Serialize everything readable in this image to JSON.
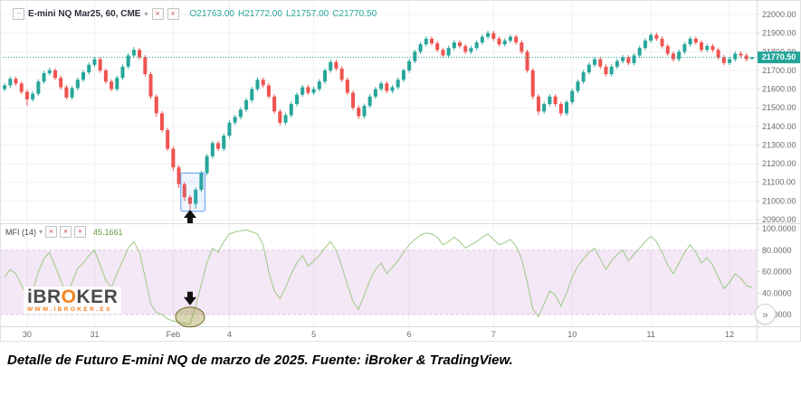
{
  "header": {
    "symbol": "E-mini NQ Mar25, 60, CME",
    "open_label": "O21763.00",
    "high_label": "H21772.00",
    "low_label": "L21757.00",
    "close_label": "C21770.50"
  },
  "indicator": {
    "name": "MFI (14)",
    "value": "45.1661"
  },
  "price_line": {
    "value": 21770.5,
    "label": "21770.50"
  },
  "icons": {
    "collapse": "−",
    "dropdown": "▾",
    "broken_x": "✕",
    "chevron_double_right": "»"
  },
  "watermark": {
    "brand_prefix": "iBR",
    "brand_o": "O",
    "brand_suffix": "KER",
    "subtitle": "WWW.IBROKER.ES"
  },
  "caption": "Detalle de Futuro E-mini NQ de marzo de 2025. Fuente: iBroker & TradingView.",
  "colors": {
    "up": "#26a69a",
    "down": "#ef5350",
    "mfi_line": "#9bcb84",
    "mfi_value": "#5a9e3e",
    "band_fill": "rgba(206,147,216,0.22)",
    "band_line": "#cfa6d6",
    "grid": "#f0f0f0",
    "separator": "#d8dbe3",
    "axis_text": "#6a6a6a",
    "selection": "#5b9cf6",
    "selection_fill": "rgba(91,156,246,0.10)",
    "annotation": "#111111",
    "circle_fill": "rgba(158,147,50,0.38)",
    "circle_stroke": "#6f6824",
    "logo_text": "#4a4a4c",
    "logo_accent": "#f58220",
    "border": "#e2e2e2"
  },
  "axis": {
    "price_ticks": [
      {
        "label": "22000.00",
        "value": 22000
      },
      {
        "label": "21900.00",
        "value": 21900
      },
      {
        "label": "21800.00",
        "value": 21800
      },
      {
        "label": "21700.00",
        "value": 21700
      },
      {
        "label": "21600.00",
        "value": 21600
      },
      {
        "label": "21500.00",
        "value": 21500
      },
      {
        "label": "21400.00",
        "value": 21400
      },
      {
        "label": "21300.00",
        "value": 21300
      },
      {
        "label": "21200.00",
        "value": 21200
      },
      {
        "label": "21100.00",
        "value": 21100
      },
      {
        "label": "21000.00",
        "value": 21000
      },
      {
        "label": "20900.00",
        "value": 20900
      }
    ],
    "mfi_ticks": [
      {
        "label": "100.0000",
        "value": 100
      },
      {
        "label": "80.0000",
        "value": 80
      },
      {
        "label": "60.0000",
        "value": 60
      },
      {
        "label": "40.0000",
        "value": 40
      },
      {
        "label": "20.0000",
        "value": 20
      }
    ],
    "time_ticks": [
      {
        "label": "30",
        "index": 4
      },
      {
        "label": "31",
        "index": 16
      },
      {
        "label": "Feb",
        "index": 30
      },
      {
        "label": "4",
        "index": 40
      },
      {
        "label": "5",
        "index": 55
      },
      {
        "label": "6",
        "index": 72
      },
      {
        "label": "7",
        "index": 87
      },
      {
        "label": "10",
        "index": 101
      },
      {
        "label": "11",
        "index": 115
      },
      {
        "label": "12",
        "index": 129
      }
    ]
  },
  "chart_data": [
    {
      "type": "candlestick",
      "title": "E-mini NQ Mar25, 60, CME",
      "interval_minutes": 60,
      "ylim": [
        20900,
        22000
      ],
      "last_price": 21770.5,
      "ohlc": [
        [
          21600,
          21632,
          21588,
          21620
        ],
        [
          21620,
          21667,
          21608,
          21655
        ],
        [
          21655,
          21667,
          21618,
          21630
        ],
        [
          21630,
          21642,
          21573,
          21585
        ],
        [
          21585,
          21597,
          21510,
          21545
        ],
        [
          21545,
          21587,
          21533,
          21575
        ],
        [
          21575,
          21652,
          21563,
          21640
        ],
        [
          21640,
          21697,
          21628,
          21685
        ],
        [
          21685,
          21715,
          21673,
          21700
        ],
        [
          21700,
          21712,
          21648,
          21660
        ],
        [
          21660,
          21672,
          21598,
          21610
        ],
        [
          21610,
          21622,
          21543,
          21555
        ],
        [
          21555,
          21617,
          21543,
          21605
        ],
        [
          21605,
          21662,
          21593,
          21650
        ],
        [
          21650,
          21702,
          21638,
          21690
        ],
        [
          21690,
          21742,
          21678,
          21730
        ],
        [
          21730,
          21772,
          21718,
          21760
        ],
        [
          21760,
          21772,
          21688,
          21700
        ],
        [
          21700,
          21712,
          21628,
          21640
        ],
        [
          21640,
          21652,
          21588,
          21600
        ],
        [
          21600,
          21672,
          21588,
          21660
        ],
        [
          21660,
          21732,
          21648,
          21720
        ],
        [
          21720,
          21792,
          21708,
          21780
        ],
        [
          21780,
          21825,
          21768,
          21810
        ],
        [
          21810,
          21822,
          21758,
          21770
        ],
        [
          21770,
          21782,
          21668,
          21680
        ],
        [
          21680,
          21692,
          21548,
          21560
        ],
        [
          21560,
          21572,
          21450,
          21470
        ],
        [
          21470,
          21482,
          21368,
          21380
        ],
        [
          21380,
          21392,
          21268,
          21280
        ],
        [
          21280,
          21292,
          21160,
          21180
        ],
        [
          21180,
          21192,
          21070,
          21090
        ],
        [
          21090,
          21102,
          21000,
          21020
        ],
        [
          21020,
          21032,
          20955,
          20985
        ],
        [
          20985,
          21072,
          20960,
          21060
        ],
        [
          21060,
          21162,
          21048,
          21150
        ],
        [
          21150,
          21252,
          21138,
          21240
        ],
        [
          21240,
          21322,
          21228,
          21310
        ],
        [
          21310,
          21322,
          21268,
          21280
        ],
        [
          21280,
          21362,
          21268,
          21350
        ],
        [
          21350,
          21432,
          21338,
          21420
        ],
        [
          21420,
          21462,
          21408,
          21450
        ],
        [
          21450,
          21502,
          21438,
          21490
        ],
        [
          21490,
          21552,
          21478,
          21540
        ],
        [
          21540,
          21612,
          21528,
          21600
        ],
        [
          21600,
          21662,
          21588,
          21650
        ],
        [
          21650,
          21662,
          21608,
          21620
        ],
        [
          21620,
          21632,
          21548,
          21560
        ],
        [
          21560,
          21572,
          21468,
          21480
        ],
        [
          21480,
          21492,
          21405,
          21420
        ],
        [
          21420,
          21472,
          21408,
          21460
        ],
        [
          21460,
          21532,
          21448,
          21520
        ],
        [
          21520,
          21582,
          21508,
          21570
        ],
        [
          21570,
          21622,
          21558,
          21610
        ],
        [
          21610,
          21622,
          21568,
          21580
        ],
        [
          21580,
          21612,
          21568,
          21600
        ],
        [
          21600,
          21652,
          21588,
          21640
        ],
        [
          21640,
          21712,
          21628,
          21700
        ],
        [
          21700,
          21757,
          21688,
          21745
        ],
        [
          21745,
          21757,
          21698,
          21710
        ],
        [
          21710,
          21722,
          21638,
          21650
        ],
        [
          21650,
          21662,
          21568,
          21580
        ],
        [
          21580,
          21592,
          21488,
          21500
        ],
        [
          21500,
          21512,
          21440,
          21455
        ],
        [
          21455,
          21522,
          21443,
          21510
        ],
        [
          21510,
          21572,
          21498,
          21560
        ],
        [
          21560,
          21612,
          21548,
          21600
        ],
        [
          21600,
          21642,
          21588,
          21630
        ],
        [
          21630,
          21642,
          21578,
          21590
        ],
        [
          21590,
          21622,
          21578,
          21610
        ],
        [
          21610,
          21662,
          21598,
          21650
        ],
        [
          21650,
          21712,
          21638,
          21700
        ],
        [
          21700,
          21762,
          21688,
          21750
        ],
        [
          21750,
          21812,
          21738,
          21800
        ],
        [
          21800,
          21852,
          21788,
          21840
        ],
        [
          21840,
          21882,
          21828,
          21870
        ],
        [
          21870,
          21882,
          21833,
          21845
        ],
        [
          21845,
          21857,
          21798,
          21810
        ],
        [
          21810,
          21822,
          21768,
          21780
        ],
        [
          21780,
          21832,
          21768,
          21820
        ],
        [
          21820,
          21862,
          21808,
          21850
        ],
        [
          21850,
          21862,
          21818,
          21830
        ],
        [
          21830,
          21842,
          21788,
          21800
        ],
        [
          21800,
          21832,
          21788,
          21820
        ],
        [
          21820,
          21862,
          21808,
          21850
        ],
        [
          21850,
          21892,
          21838,
          21880
        ],
        [
          21880,
          21912,
          21868,
          21900
        ],
        [
          21900,
          21912,
          21858,
          21870
        ],
        [
          21870,
          21882,
          21828,
          21840
        ],
        [
          21840,
          21872,
          21828,
          21860
        ],
        [
          21860,
          21892,
          21848,
          21880
        ],
        [
          21880,
          21892,
          21838,
          21850
        ],
        [
          21850,
          21862,
          21788,
          21800
        ],
        [
          21800,
          21812,
          21688,
          21700
        ],
        [
          21700,
          21712,
          21545,
          21560
        ],
        [
          21560,
          21572,
          21460,
          21480
        ],
        [
          21480,
          21532,
          21468,
          21520
        ],
        [
          21520,
          21572,
          21508,
          21560
        ],
        [
          21560,
          21572,
          21508,
          21520
        ],
        [
          21520,
          21532,
          21455,
          21470
        ],
        [
          21470,
          21542,
          21458,
          21530
        ],
        [
          21530,
          21602,
          21518,
          21590
        ],
        [
          21590,
          21652,
          21578,
          21640
        ],
        [
          21640,
          21702,
          21628,
          21690
        ],
        [
          21690,
          21742,
          21678,
          21730
        ],
        [
          21730,
          21772,
          21718,
          21760
        ],
        [
          21760,
          21772,
          21708,
          21720
        ],
        [
          21720,
          21732,
          21668,
          21680
        ],
        [
          21680,
          21732,
          21668,
          21720
        ],
        [
          21720,
          21762,
          21708,
          21750
        ],
        [
          21750,
          21782,
          21738,
          21770
        ],
        [
          21770,
          21782,
          21728,
          21740
        ],
        [
          21740,
          21792,
          21728,
          21780
        ],
        [
          21780,
          21832,
          21768,
          21820
        ],
        [
          21820,
          21872,
          21808,
          21860
        ],
        [
          21860,
          21902,
          21848,
          21890
        ],
        [
          21890,
          21902,
          21858,
          21870
        ],
        [
          21870,
          21882,
          21818,
          21830
        ],
        [
          21830,
          21842,
          21778,
          21790
        ],
        [
          21790,
          21802,
          21748,
          21760
        ],
        [
          21760,
          21812,
          21748,
          21800
        ],
        [
          21800,
          21852,
          21788,
          21840
        ],
        [
          21840,
          21882,
          21828,
          21870
        ],
        [
          21870,
          21882,
          21838,
          21850
        ],
        [
          21850,
          21862,
          21798,
          21810
        ],
        [
          21810,
          21842,
          21798,
          21830
        ],
        [
          21830,
          21842,
          21798,
          21810
        ],
        [
          21810,
          21822,
          21758,
          21770
        ],
        [
          21770,
          21782,
          21728,
          21740
        ],
        [
          21740,
          21772,
          21728,
          21760
        ],
        [
          21760,
          21802,
          21748,
          21790
        ],
        [
          21790,
          21802,
          21768,
          21780
        ],
        [
          21780,
          21792,
          21748,
          21760
        ],
        [
          21763,
          21772,
          21757,
          21770.5
        ]
      ]
    },
    {
      "type": "line",
      "name": "MFI",
      "length": 14,
      "ylim": [
        0,
        100
      ],
      "overbought": 80,
      "oversold": 20,
      "last_value": 45.1661,
      "values": [
        55,
        62,
        58,
        48,
        35,
        42,
        60,
        72,
        78,
        65,
        52,
        38,
        50,
        63,
        68,
        75,
        80,
        66,
        52,
        45,
        58,
        70,
        82,
        88,
        78,
        55,
        30,
        22,
        20,
        16,
        14,
        13,
        12,
        11,
        28,
        48,
        68,
        82,
        78,
        88,
        95,
        97,
        98,
        99,
        97,
        95,
        85,
        60,
        42,
        35,
        45,
        58,
        68,
        75,
        65,
        70,
        75,
        82,
        88,
        80,
        65,
        48,
        32,
        25,
        38,
        52,
        62,
        68,
        58,
        64,
        70,
        78,
        85,
        90,
        94,
        96,
        95,
        92,
        85,
        88,
        92,
        88,
        82,
        85,
        88,
        92,
        95,
        90,
        85,
        87,
        90,
        84,
        72,
        50,
        25,
        18,
        30,
        42,
        38,
        28,
        40,
        55,
        65,
        72,
        78,
        82,
        72,
        62,
        70,
        76,
        80,
        70,
        76,
        82,
        88,
        93,
        88,
        78,
        66,
        58,
        68,
        78,
        85,
        78,
        68,
        73,
        66,
        55,
        44,
        50,
        58,
        54,
        47,
        45.1661
      ]
    }
  ],
  "annotations": {
    "selection_box": {
      "start_candle": 32,
      "end_candle": 35,
      "top_value": 21150,
      "bottom_value": 20945
    },
    "up_arrow": {
      "candle": 33
    },
    "down_arrow": {
      "candle": 33
    },
    "highlight_circle": {
      "candle": 33
    }
  }
}
